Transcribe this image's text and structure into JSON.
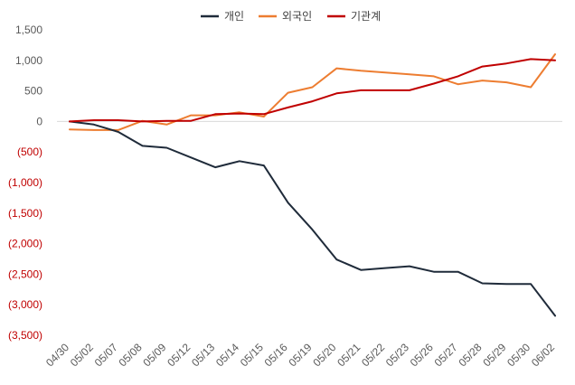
{
  "chart_data": {
    "type": "line",
    "categories": [
      "04/30",
      "05/02",
      "05/07",
      "05/08",
      "05/09",
      "05/12",
      "05/13",
      "05/14",
      "05/15",
      "05/16",
      "05/19",
      "05/20",
      "05/21",
      "05/22",
      "05/23",
      "05/26",
      "05/27",
      "05/28",
      "05/29",
      "05/30",
      "06/02"
    ],
    "series": [
      {
        "name": "개인",
        "color": "#1f2b3a",
        "values": [
          0,
          -50,
          -170,
          -400,
          -430,
          -590,
          -750,
          -650,
          -720,
          -1330,
          -1770,
          -2260,
          -2430,
          -2400,
          -2370,
          -2460,
          -2460,
          -2650,
          -2660,
          -2660,
          -3180
        ]
      },
      {
        "name": "외국인",
        "color": "#ed7d31",
        "values": [
          -130,
          -140,
          -140,
          10,
          -50,
          100,
          100,
          150,
          80,
          470,
          560,
          870,
          830,
          800,
          770,
          740,
          610,
          670,
          640,
          560,
          1100
        ]
      },
      {
        "name": "기관계",
        "color": "#c00000",
        "values": [
          0,
          20,
          20,
          0,
          10,
          10,
          120,
          130,
          120,
          230,
          330,
          460,
          510,
          510,
          510,
          620,
          740,
          900,
          950,
          1020,
          1000
        ]
      }
    ],
    "ylim": [
      -3500,
      1500
    ],
    "yticks": [
      1500,
      1000,
      500,
      0,
      -500,
      -1000,
      -1500,
      -2000,
      -2500,
      -3000,
      -3500
    ],
    "ytick_labels": [
      "1,500",
      "1,000",
      "500",
      "0",
      "(500)",
      "(1,000)",
      "(1,500)",
      "(2,000)",
      "(2,500)",
      "(3,000)",
      "(3,500)"
    ],
    "negative_label_color": "#c00000",
    "positive_label_color": "#595959",
    "zero_line_color": "#d9d9d9",
    "legend_position": "top-center",
    "grid": false
  }
}
